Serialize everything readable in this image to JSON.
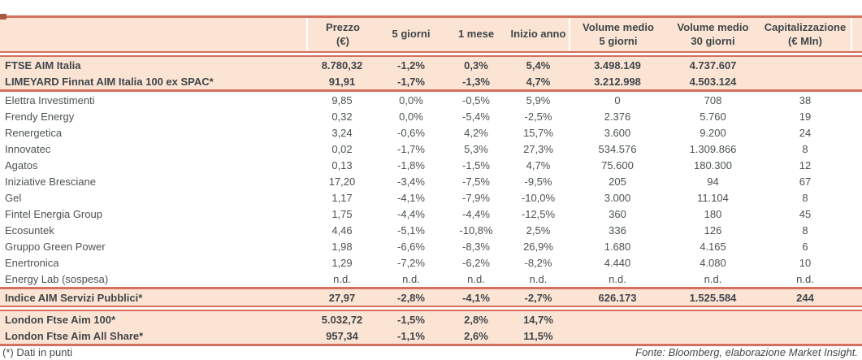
{
  "colors": {
    "border": "#d3705f",
    "header_bg": "#fce4d5",
    "marker": "#a85a44",
    "text_bold": "#3f4648",
    "text_body": "#4c5254"
  },
  "table": {
    "header": {
      "columns": [
        {
          "id": "name",
          "lines": []
        },
        {
          "id": "prezzo",
          "lines": [
            "Prezzo",
            "(€)"
          ]
        },
        {
          "id": "5-giorni",
          "lines": [
            "5 giorni"
          ]
        },
        {
          "id": "1-mese",
          "lines": [
            "1 mese"
          ]
        },
        {
          "id": "inizio-anno",
          "lines": [
            "Inizio anno"
          ]
        },
        {
          "id": "volume-medio-5-giorni",
          "lines": [
            "Volume medio",
            "5 giorni"
          ]
        },
        {
          "id": "volume-medio-30-giorni",
          "lines": [
            "Volume medio",
            "30 giorni"
          ]
        },
        {
          "id": "capitalizzazione",
          "lines": [
            "Capitalizzazione",
            "(€ Mln)"
          ]
        }
      ]
    },
    "sections": {
      "indices": [
        {
          "name": "FTSE AIM Italia",
          "values": [
            "8.780,32",
            "-1,2%",
            "0,3%",
            "5,4%",
            "3.498.149",
            "4.737.607",
            ""
          ]
        },
        {
          "name": "LIMEYARD Finnat AIM Italia 100 ex SPAC*",
          "values": [
            "91,91",
            "-1,7%",
            "-1,3%",
            "4,7%",
            "3.212.998",
            "4.503.124",
            ""
          ]
        }
      ],
      "companies": [
        {
          "name": "Elettra Investimenti",
          "values": [
            "9,85",
            "0,0%",
            "-0,5%",
            "5,9%",
            "0",
            "708",
            "38"
          ]
        },
        {
          "name": "Frendy Energy",
          "values": [
            "0,32",
            "0,0%",
            "-5,4%",
            "-2,5%",
            "2.376",
            "5.760",
            "19"
          ]
        },
        {
          "name": "Renergetica",
          "values": [
            "3,24",
            "-0,6%",
            "4,2%",
            "15,7%",
            "3.600",
            "9.200",
            "24"
          ]
        },
        {
          "name": "Innovatec",
          "values": [
            "0,02",
            "-1,7%",
            "5,3%",
            "27,3%",
            "534.576",
            "1.309.866",
            "8"
          ]
        },
        {
          "name": "Agatos",
          "values": [
            "0,13",
            "-1,8%",
            "-1,5%",
            "4,7%",
            "75.600",
            "180.300",
            "12"
          ]
        },
        {
          "name": "Iniziative Bresciane",
          "values": [
            "17,20",
            "-3,4%",
            "-7,5%",
            "-9,5%",
            "205",
            "94",
            "67"
          ]
        },
        {
          "name": "Gel",
          "values": [
            "1,17",
            "-4,1%",
            "-7,9%",
            "-10,0%",
            "3.000",
            "11.104",
            "8"
          ]
        },
        {
          "name": "Fintel Energia Group",
          "values": [
            "1,75",
            "-4,4%",
            "-4,4%",
            "-12,5%",
            "360",
            "180",
            "45"
          ]
        },
        {
          "name": "Ecosuntek",
          "values": [
            "4,46",
            "-5,1%",
            "-10,8%",
            "2,5%",
            "336",
            "126",
            "8"
          ]
        },
        {
          "name": "Gruppo Green Power",
          "values": [
            "1,98",
            "-6,6%",
            "-8,3%",
            "26,9%",
            "1.680",
            "4.165",
            "6"
          ]
        },
        {
          "name": "Enertronica",
          "values": [
            "1,29",
            "-7,2%",
            "-6,2%",
            "-8,2%",
            "4.440",
            "4.080",
            "10"
          ]
        },
        {
          "name": "Energy Lab (sospesa)",
          "values": [
            "n.d.",
            "n.d.",
            "n.d.",
            "n.d.",
            "n.d.",
            "n.d.",
            "n.d."
          ]
        }
      ],
      "servizi": [
        {
          "name": "Indice AIM Servizi Pubblici*",
          "values": [
            "27,97",
            "-2,8%",
            "-4,1%",
            "-2,7%",
            "626.173",
            "1.525.584",
            "244"
          ]
        }
      ],
      "london": [
        {
          "name": "London Ftse Aim 100*",
          "values": [
            "5.032,72",
            "-1,5%",
            "2,8%",
            "14,7%",
            "",
            "",
            ""
          ]
        },
        {
          "name": "London Ftse Aim All Share*",
          "values": [
            "957,34",
            "-1,1%",
            "2,6%",
            "11,5%",
            "",
            "",
            ""
          ]
        }
      ]
    }
  },
  "footer": {
    "note": "(*) Dati in punti",
    "source": "Fonte: Bloomberg, elaborazione Market Insight."
  }
}
